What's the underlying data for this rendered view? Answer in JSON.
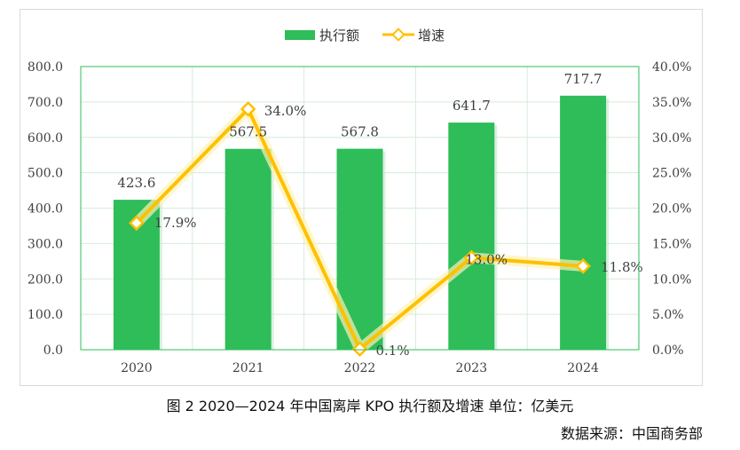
{
  "chart_data": {
    "type": "bar",
    "categories": [
      "2020",
      "2021",
      "2022",
      "2023",
      "2024"
    ],
    "series": [
      {
        "name": "执行额",
        "type": "bar",
        "axis": "left",
        "values": [
          423.6,
          567.5,
          567.8,
          641.7,
          717.7
        ],
        "labels": [
          "423.6",
          "567.5",
          "567.8",
          "641.7",
          "717.7"
        ],
        "color": "#2ebd59"
      },
      {
        "name": "增速",
        "type": "line",
        "axis": "right",
        "values": [
          17.9,
          34.0,
          0.1,
          13.0,
          11.8
        ],
        "labels": [
          "17.9%",
          "34.0%",
          "0.1%",
          "13.0%",
          "11.8%"
        ],
        "color": "#ffc000"
      }
    ],
    "y_left": {
      "ylim": [
        0,
        800
      ],
      "ticks": [
        "0.0",
        "100.0",
        "200.0",
        "300.0",
        "400.0",
        "500.0",
        "600.0",
        "700.0",
        "800.0"
      ]
    },
    "y_right": {
      "ylim": [
        0,
        40
      ],
      "ticks": [
        "0.0%",
        "5.0%",
        "10.0%",
        "15.0%",
        "20.0%",
        "25.0%",
        "30.0%",
        "35.0%",
        "40.0%"
      ]
    },
    "grid": true,
    "legend": "top-center"
  },
  "caption": "图 2 2020—2024 年中国离岸 KPO 执行额及增速 单位：亿美元",
  "source": "数据来源：中国商务部",
  "colors": {
    "bar": "#2ebd59",
    "line": "#ffc000",
    "grid": "#d5ecd9",
    "plot_border": "#2ebd59"
  }
}
